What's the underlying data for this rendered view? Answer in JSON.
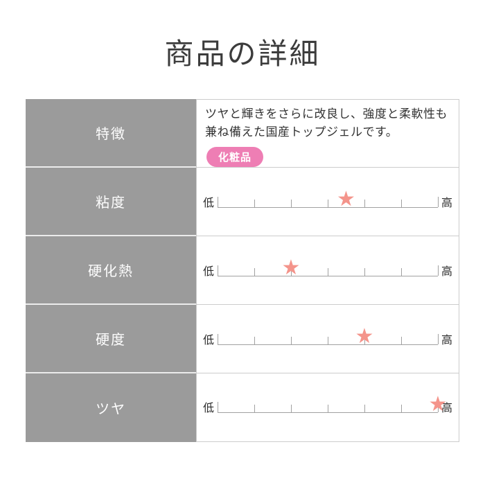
{
  "title": "商品の詳細",
  "table": {
    "feature_row": {
      "label": "特徴",
      "description": "ツヤと輝きをさらに改良し、強度と柔軟性も兼ね備えた国産トップジェルです。",
      "badge": "化粧品"
    },
    "scale_low_label": "低",
    "scale_high_label": "高",
    "star_glyph": "★",
    "tick_count": 7,
    "scale_rows": [
      {
        "label": "粘度",
        "value": 3.5,
        "max": 6
      },
      {
        "label": "硬化熱",
        "value": 2,
        "max": 6
      },
      {
        "label": "硬度",
        "value": 4,
        "max": 6
      },
      {
        "label": "ツヤ",
        "value": 6,
        "max": 6
      }
    ]
  },
  "colors": {
    "label_cell_bg": "#9b9b9b",
    "badge_pink": "#ee7eb4",
    "star_salmon": "#f4948b",
    "cell_border": "#cccccc",
    "ruler_line": "#a0a0a0",
    "text": "#333333"
  }
}
